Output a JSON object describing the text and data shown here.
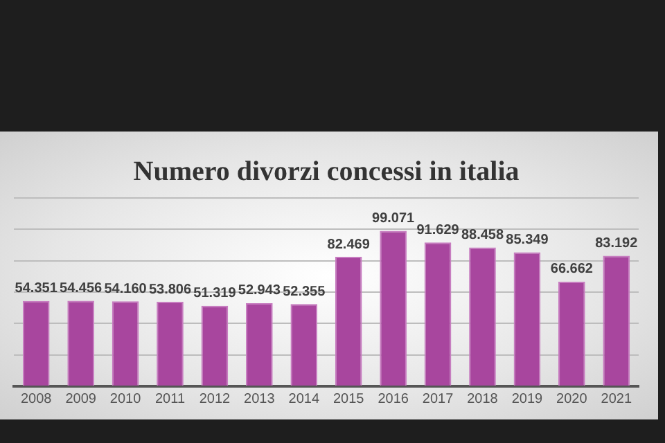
{
  "chart_data": {
    "type": "bar",
    "title": "Numero divorzi concessi in italia",
    "categories": [
      "2008",
      "2009",
      "2010",
      "2011",
      "2012",
      "2013",
      "2014",
      "2015",
      "2016",
      "2017",
      "2018",
      "2019",
      "2020",
      "2021"
    ],
    "values": [
      54351,
      54456,
      54160,
      53806,
      51319,
      52943,
      52355,
      82469,
      99071,
      91629,
      88458,
      85349,
      66662,
      83192
    ],
    "value_labels": [
      "54.351",
      "54.456",
      "54.160",
      "53.806",
      "51.319",
      "52.943",
      "52.355",
      "82.469",
      "99.071",
      "91.629",
      "88.458",
      "85.349",
      "66.662",
      "83.192"
    ],
    "color": "#a8469e",
    "ylim": [
      0,
      120000
    ],
    "yticks": [
      {
        "value": 0,
        "label": null
      },
      {
        "value": 20000,
        "label": null
      },
      {
        "value": 40000,
        "label": null
      },
      {
        "value": 60000,
        "label": null
      },
      {
        "value": 80000,
        "label": null
      },
      {
        "value": 100000,
        "label": null
      },
      {
        "value": 120000,
        "label": null
      }
    ],
    "grid": "y",
    "tick_labels": "x"
  }
}
